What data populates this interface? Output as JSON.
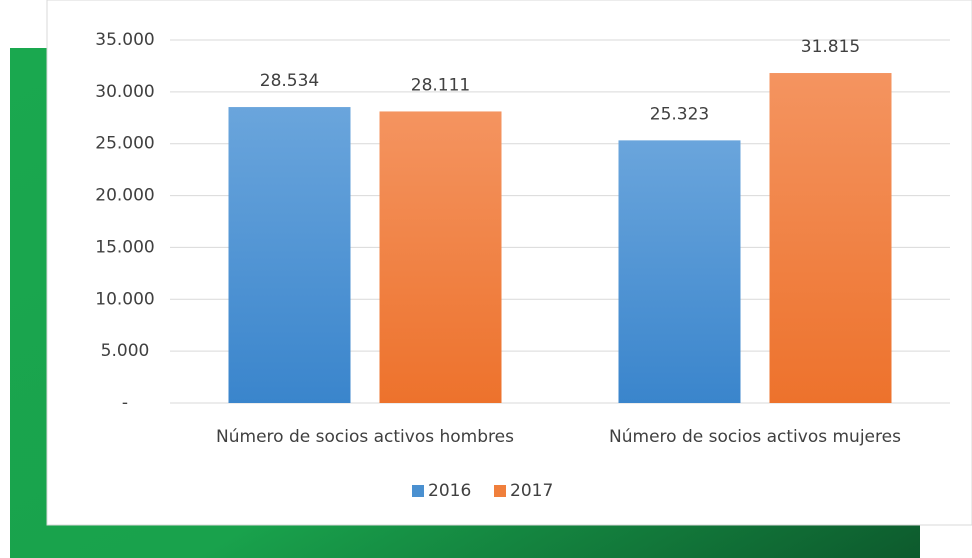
{
  "chart_data": {
    "type": "bar",
    "categories": [
      "Número de socios activos hombres",
      "Número de socios activos mujeres"
    ],
    "series": [
      {
        "name": "2016",
        "color": "#4a90d0",
        "values": [
          28534,
          25323
        ],
        "value_labels": [
          "28.534",
          "25.323"
        ]
      },
      {
        "name": "2017",
        "color": "#f07f3c",
        "values": [
          28111,
          31815
        ],
        "value_labels": [
          "28.111",
          "31.815"
        ]
      }
    ],
    "ylim": [
      0,
      35000
    ],
    "yticks": [
      {
        "value": 0,
        "label": "-"
      },
      {
        "value": 5000,
        "label": "5.000"
      },
      {
        "value": 10000,
        "label": "10.000"
      },
      {
        "value": 15000,
        "label": "15.000"
      },
      {
        "value": 20000,
        "label": "20.000"
      },
      {
        "value": 25000,
        "label": "25.000"
      },
      {
        "value": 30000,
        "label": "30.000"
      },
      {
        "value": 35000,
        "label": "35.000"
      }
    ],
    "grid": true,
    "legend": "bottom"
  }
}
